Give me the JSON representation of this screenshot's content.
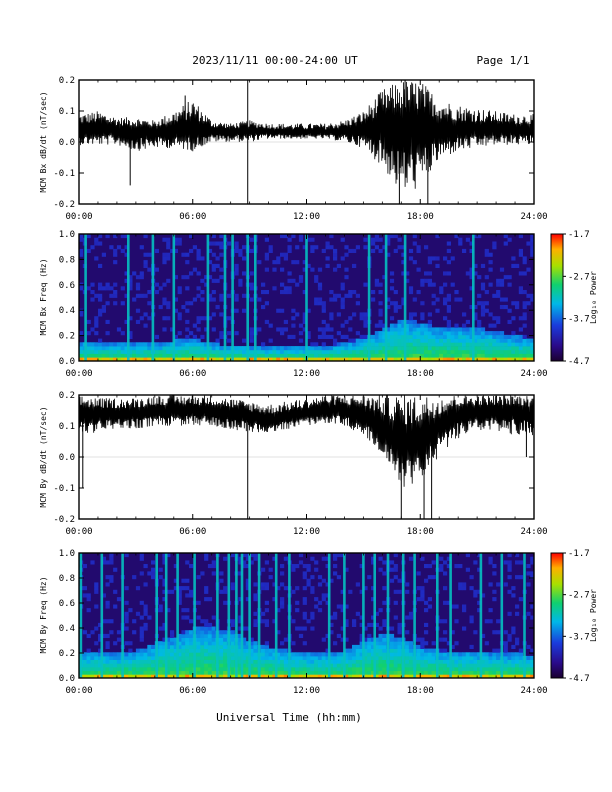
{
  "header": {
    "title": "2023/11/11  00:00-24:00 UT",
    "page": "Page 1/1"
  },
  "footer": {
    "xlabel": "Universal Time (hh:mm)"
  },
  "chart_data": [
    {
      "type": "line",
      "ylabel": "MCM Bx dB/dt (nT/sec)",
      "x_ticks": [
        "00:00",
        "06:00",
        "12:00",
        "18:00",
        "24:00"
      ],
      "y_ticks": [
        "-0.2",
        "-0.1",
        "0.0",
        "0.1",
        "0.2"
      ],
      "xlim": [
        0,
        24
      ],
      "ylim": [
        -0.2,
        0.2
      ],
      "series": [
        {
          "x": [
            0,
            1,
            2,
            3,
            4,
            5,
            6,
            7,
            8,
            9,
            10,
            11,
            12,
            13,
            14,
            15,
            16,
            17,
            18,
            19,
            20,
            21,
            22,
            23,
            24
          ],
          "center": [
            0.04,
            0.04,
            0.04,
            0.035,
            0.035,
            0.035,
            0.04,
            0.035,
            0.035,
            0.035,
            0.035,
            0.03,
            0.03,
            0.03,
            0.035,
            0.04,
            0.05,
            0.05,
            0.045,
            0.04,
            0.04,
            0.04,
            0.04,
            0.04,
            0.04
          ],
          "upper": [
            0.09,
            0.1,
            0.08,
            0.08,
            0.07,
            0.1,
            0.14,
            0.07,
            0.06,
            0.07,
            0.06,
            0.06,
            0.06,
            0.06,
            0.07,
            0.1,
            0.17,
            0.2,
            0.2,
            0.14,
            0.12,
            0.11,
            0.1,
            0.09,
            0.09
          ],
          "lower": [
            -0.01,
            -0.01,
            -0.01,
            -0.03,
            -0.02,
            -0.02,
            -0.03,
            0.0,
            0.0,
            0.0,
            0.01,
            0.01,
            0.01,
            0.01,
            0.0,
            -0.02,
            -0.08,
            -0.17,
            -0.15,
            -0.06,
            -0.03,
            -0.02,
            -0.01,
            -0.01,
            -0.01
          ]
        }
      ],
      "spikes": [
        {
          "x": 2.7,
          "y": -0.14
        },
        {
          "x": 5.6,
          "y": 0.15
        },
        {
          "x": 8.9,
          "y": 0.2
        },
        {
          "x": 8.9,
          "y": -0.2
        },
        {
          "x": 16.9,
          "y": -0.2
        },
        {
          "x": 17.2,
          "y": 0.2
        },
        {
          "x": 18.4,
          "y": -0.2
        }
      ]
    },
    {
      "type": "heatmap",
      "ylabel": "MCM Bx Freq (Hz)",
      "x_ticks": [
        "00:00",
        "06:00",
        "12:00",
        "18:00",
        "24:00"
      ],
      "y_ticks": [
        "0.0",
        "0.2",
        "0.4",
        "0.6",
        "0.8",
        "1.0"
      ],
      "xlim": [
        0,
        24
      ],
      "ylim": [
        0,
        1
      ],
      "colorbar": {
        "label": "Log₁₀ Power",
        "ticks": [
          "-1.7",
          "-2.7",
          "-3.7",
          "-4.7"
        ],
        "range": [
          -4.7,
          -1.7
        ]
      },
      "band_top_freq": [
        0.15,
        0.15,
        0.14,
        0.14,
        0.14,
        0.16,
        0.18,
        0.14,
        0.12,
        0.12,
        0.11,
        0.11,
        0.11,
        0.12,
        0.14,
        0.18,
        0.25,
        0.33,
        0.3,
        0.27,
        0.27,
        0.26,
        0.23,
        0.2,
        0.18
      ],
      "stripes": [
        0.35,
        2.6,
        3.9,
        5.0,
        6.8,
        7.7,
        8.1,
        8.9,
        9.3,
        12.0,
        15.3,
        16.2,
        17.2,
        20.8
      ]
    },
    {
      "type": "line",
      "ylabel": "MCM By dB/dt (nT/sec)",
      "x_ticks": [
        "00:00",
        "06:00",
        "12:00",
        "18:00",
        "24:00"
      ],
      "y_ticks": [
        "-0.2",
        "-0.1",
        "0.0",
        "0.1",
        "0.2"
      ],
      "xlim": [
        0,
        24
      ],
      "ylim": [
        -0.2,
        0.2
      ],
      "series": [
        {
          "x": [
            0,
            1,
            2,
            3,
            4,
            5,
            6,
            7,
            8,
            9,
            10,
            11,
            12,
            13,
            14,
            15,
            16,
            17,
            18,
            19,
            20,
            21,
            22,
            23,
            24
          ],
          "center": [
            0.14,
            0.14,
            0.14,
            0.14,
            0.15,
            0.15,
            0.15,
            0.15,
            0.14,
            0.13,
            0.12,
            0.13,
            0.14,
            0.15,
            0.15,
            0.14,
            0.1,
            0.05,
            0.05,
            0.1,
            0.14,
            0.15,
            0.15,
            0.15,
            0.14
          ],
          "upper": [
            0.2,
            0.19,
            0.19,
            0.19,
            0.2,
            0.2,
            0.2,
            0.2,
            0.19,
            0.18,
            0.17,
            0.18,
            0.19,
            0.2,
            0.2,
            0.2,
            0.2,
            0.2,
            0.2,
            0.2,
            0.2,
            0.2,
            0.2,
            0.2,
            0.2
          ],
          "lower": [
            0.07,
            0.08,
            0.09,
            0.09,
            0.1,
            0.1,
            0.1,
            0.1,
            0.09,
            0.08,
            0.08,
            0.09,
            0.1,
            0.11,
            0.1,
            0.07,
            0.0,
            -0.1,
            -0.08,
            0.0,
            0.06,
            0.08,
            0.08,
            0.07,
            0.07
          ]
        }
      ],
      "spikes": [
        {
          "x": 0.2,
          "y": -0.1
        },
        {
          "x": 8.9,
          "y": -0.2
        },
        {
          "x": 17.0,
          "y": -0.2
        },
        {
          "x": 18.2,
          "y": -0.2
        },
        {
          "x": 18.6,
          "y": -0.2
        },
        {
          "x": 23.6,
          "y": 0.0
        }
      ]
    },
    {
      "type": "heatmap",
      "ylabel": "MCM By Freq (Hz)",
      "x_ticks": [
        "00:00",
        "06:00",
        "12:00",
        "18:00",
        "24:00"
      ],
      "y_ticks": [
        "0.0",
        "0.2",
        "0.4",
        "0.6",
        "0.8",
        "1.0"
      ],
      "xlim": [
        0,
        24
      ],
      "ylim": [
        0,
        1
      ],
      "colorbar": {
        "label": "Log₁₀ Power",
        "ticks": [
          "-1.7",
          "-2.7",
          "-3.7",
          "-4.7"
        ],
        "range": [
          -4.7,
          -1.7
        ]
      },
      "band_top_freq": [
        0.2,
        0.22,
        0.2,
        0.22,
        0.28,
        0.33,
        0.4,
        0.4,
        0.38,
        0.3,
        0.25,
        0.22,
        0.2,
        0.2,
        0.22,
        0.3,
        0.35,
        0.33,
        0.25,
        0.22,
        0.22,
        0.22,
        0.2,
        0.2,
        0.18
      ],
      "stripes": [
        0.1,
        1.2,
        2.3,
        4.1,
        4.6,
        5.2,
        6.1,
        7.3,
        7.9,
        8.3,
        8.6,
        9.0,
        9.5,
        10.4,
        11.1,
        13.2,
        14.0,
        15.0,
        15.6,
        16.3,
        17.1,
        17.7,
        18.9,
        19.6,
        21.2,
        22.3,
        23.5
      ]
    }
  ]
}
